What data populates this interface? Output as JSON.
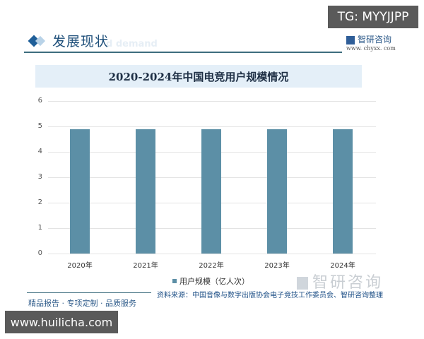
{
  "header": {
    "section_title": "发展现状",
    "ghost_text": "d demand",
    "tg_badge": "TG: MYYJJPP",
    "brand_name": "智研咨询",
    "brand_url": "www. chyxx. com"
  },
  "chart_data": {
    "type": "bar",
    "title": "2020-2024年中国电竞用户规模情况",
    "categories": [
      "2020年",
      "2021年",
      "2022年",
      "2023年",
      "2024年"
    ],
    "series": [
      {
        "name": "用户规模（亿人次）",
        "values": [
          4.9,
          4.9,
          4.9,
          4.9,
          4.9
        ],
        "color": "#5c8fa6"
      }
    ],
    "xlabel": "",
    "ylabel": "",
    "ylim": [
      0,
      6
    ],
    "yticks": [
      "0",
      "1",
      "2",
      "3",
      "4",
      "5",
      "6"
    ],
    "grid": true,
    "legend_position": "bottom"
  },
  "footer": {
    "watermark": "智研咨询",
    "source": "资料来源：中国音像与数字出版协会电子竞技工作委员会、智研咨询整理",
    "slogan": "精品报告 · 专项定制 · 品质服务",
    "url_badge": "www.huilicha.com"
  }
}
